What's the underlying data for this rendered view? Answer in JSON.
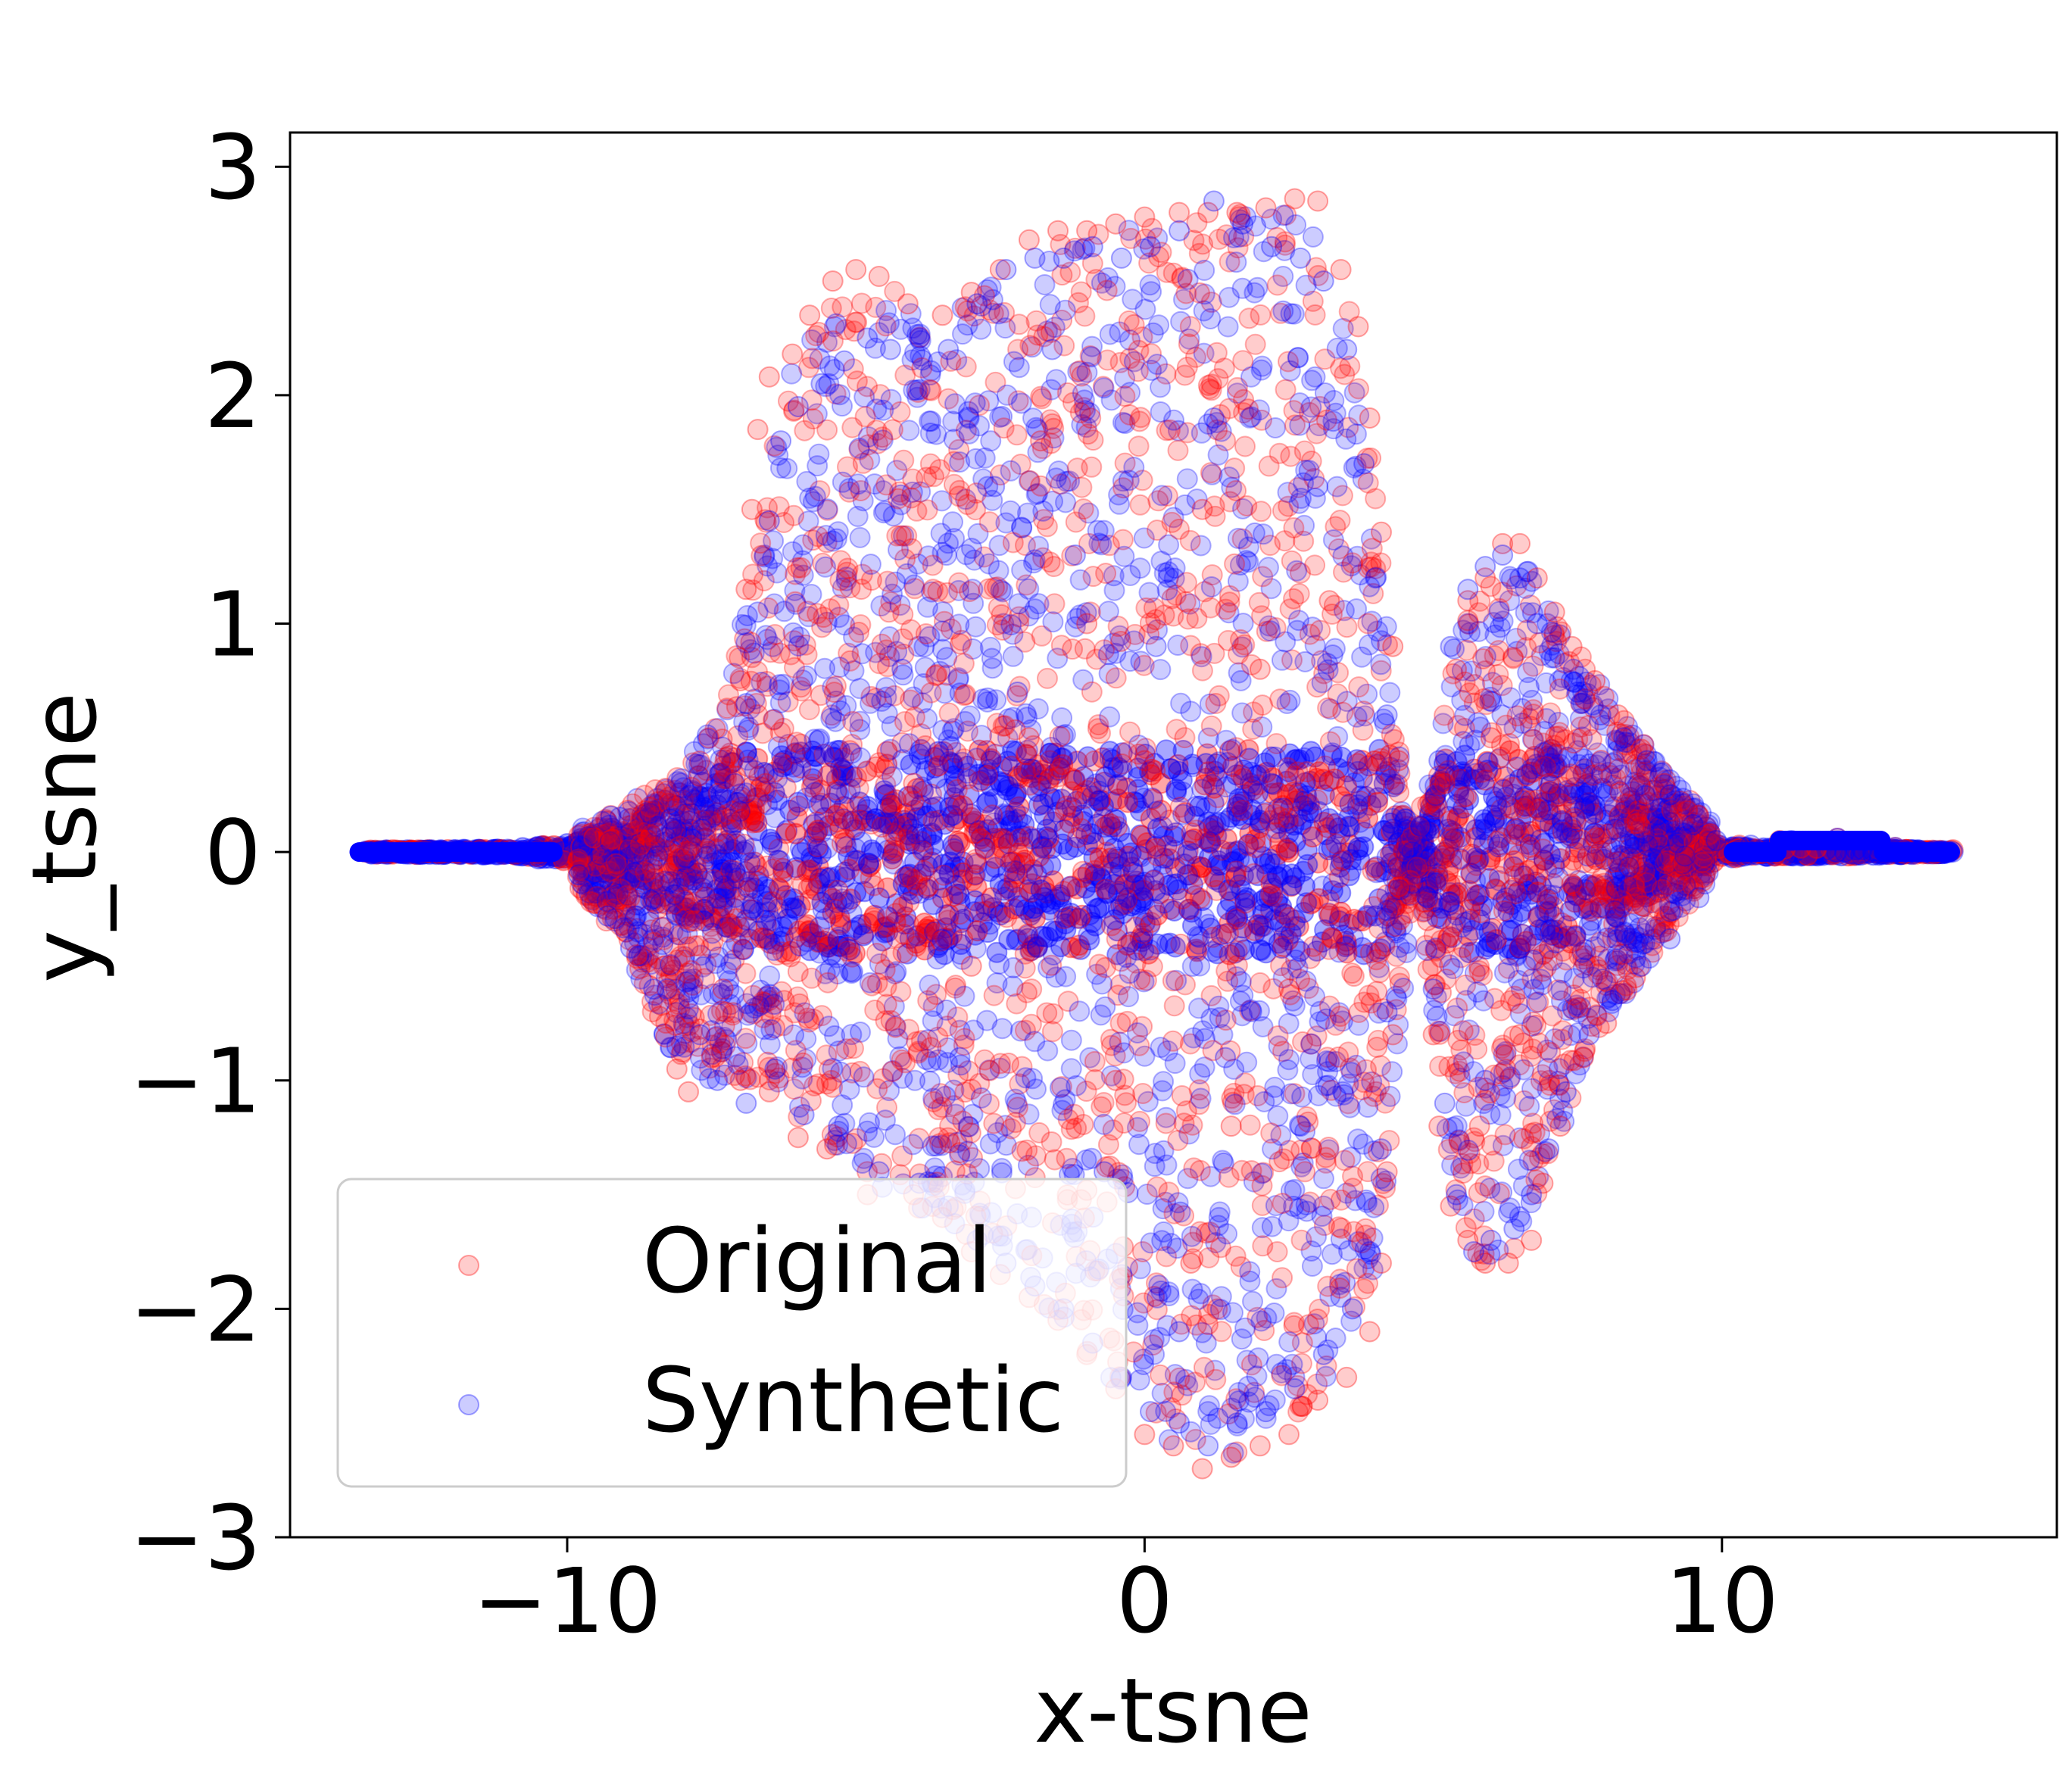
{
  "chart_data": {
    "type": "scatter",
    "xlabel": "x-tsne",
    "ylabel": "y_tsne",
    "xlim": [
      -14.8,
      15.8
    ],
    "ylim": [
      -3.0,
      3.15
    ],
    "xticks": [
      -10,
      0,
      10
    ],
    "xtick_labels": [
      "−10",
      "0",
      "10"
    ],
    "yticks": [
      -3,
      -2,
      -1,
      0,
      1,
      2,
      3
    ],
    "ytick_labels": [
      "−3",
      "−2",
      "−1",
      "0",
      "1",
      "2",
      "3"
    ],
    "grid": false,
    "legend_position": "lower-left",
    "series": [
      {
        "name": "Original",
        "color": "#ff0000",
        "alpha": 0.2,
        "points": [
          [
            -13.5,
            0.0
          ],
          [
            -12.5,
            0.0
          ],
          [
            -11.5,
            0.01
          ],
          [
            -10.5,
            -0.02
          ],
          [
            -9.8,
            -0.08
          ],
          [
            -9.2,
            -0.25
          ],
          [
            -8.8,
            -0.45
          ],
          [
            -8.4,
            -0.72
          ],
          [
            -8.1,
            -0.95
          ],
          [
            -7.9,
            -1.05
          ],
          [
            -7.5,
            -0.9
          ],
          [
            -7.3,
            -0.6
          ],
          [
            -7.2,
            0.42
          ],
          [
            -7.0,
            0.75
          ],
          [
            -6.9,
            1.15
          ],
          [
            -6.8,
            1.5
          ],
          [
            -6.7,
            1.85
          ],
          [
            -6.5,
            2.08
          ],
          [
            -6.1,
            2.18
          ],
          [
            -5.8,
            2.35
          ],
          [
            -5.4,
            2.5
          ],
          [
            -5.0,
            2.55
          ],
          [
            -4.6,
            2.52
          ],
          [
            -4.1,
            2.4
          ],
          [
            -3.5,
            2.35
          ],
          [
            -3.0,
            2.45
          ],
          [
            -2.5,
            2.55
          ],
          [
            -2.0,
            2.68
          ],
          [
            -1.5,
            2.72
          ],
          [
            -1.0,
            2.72
          ],
          [
            -0.5,
            2.75
          ],
          [
            0.0,
            2.78
          ],
          [
            0.6,
            2.8
          ],
          [
            1.1,
            2.8
          ],
          [
            1.6,
            2.8
          ],
          [
            2.1,
            2.82
          ],
          [
            2.6,
            2.86
          ],
          [
            3.0,
            2.85
          ],
          [
            3.4,
            2.55
          ],
          [
            3.7,
            2.3
          ],
          [
            3.9,
            1.9
          ],
          [
            4.1,
            1.4
          ],
          [
            4.3,
            0.9
          ],
          [
            4.4,
            0.4
          ],
          [
            4.3,
            -0.8
          ],
          [
            4.2,
            -1.4
          ],
          [
            4.1,
            -1.8
          ],
          [
            3.9,
            -2.1
          ],
          [
            3.5,
            -2.3
          ],
          [
            3.0,
            -2.4
          ],
          [
            2.5,
            -2.55
          ],
          [
            2.0,
            -2.6
          ],
          [
            1.5,
            -2.65
          ],
          [
            1.0,
            -2.7
          ],
          [
            0.5,
            -2.6
          ],
          [
            0.0,
            -2.55
          ],
          [
            -0.5,
            -2.35
          ],
          [
            -1.0,
            -2.2
          ],
          [
            -1.5,
            -2.05
          ],
          [
            -2.0,
            -1.95
          ],
          [
            -2.5,
            -1.85
          ],
          [
            -3.0,
            -1.75
          ],
          [
            -3.5,
            -1.6
          ],
          [
            -4.0,
            -1.5
          ],
          [
            -4.8,
            -1.5
          ],
          [
            -5.5,
            -1.3
          ],
          [
            -6.0,
            -1.25
          ],
          [
            -6.5,
            -1.05
          ],
          [
            -7.0,
            -1.0
          ],
          [
            -2.0,
            0.5
          ],
          [
            -1.0,
            1.0
          ],
          [
            0.0,
            0.4
          ],
          [
            1.0,
            1.5
          ],
          [
            2.0,
            0.8
          ],
          [
            -3.0,
            -0.5
          ],
          [
            1.5,
            -1.2
          ],
          [
            -0.5,
            -1.0
          ],
          [
            2.5,
            -0.6
          ],
          [
            -4.0,
            0.3
          ],
          [
            3.2,
            1.1
          ],
          [
            -1.8,
            1.8
          ],
          [
            0.8,
            -1.8
          ],
          [
            5.2,
            0.3
          ],
          [
            5.4,
            0.8
          ],
          [
            5.6,
            1.1
          ],
          [
            5.9,
            1.2
          ],
          [
            6.2,
            1.35
          ],
          [
            6.5,
            1.35
          ],
          [
            6.8,
            1.2
          ],
          [
            7.1,
            1.05
          ],
          [
            7.4,
            0.9
          ],
          [
            7.8,
            0.75
          ],
          [
            8.2,
            0.6
          ],
          [
            8.6,
            0.45
          ],
          [
            9.0,
            0.3
          ],
          [
            9.4,
            0.18
          ],
          [
            9.8,
            0.08
          ],
          [
            10.3,
            0.03
          ],
          [
            11.0,
            0.05
          ],
          [
            12.0,
            0.06
          ],
          [
            13.0,
            0.02
          ],
          [
            14.0,
            0.01
          ],
          [
            9.5,
            -0.15
          ],
          [
            9.0,
            -0.35
          ],
          [
            8.5,
            -0.55
          ],
          [
            8.0,
            -0.75
          ],
          [
            7.6,
            -0.9
          ],
          [
            7.2,
            -1.2
          ],
          [
            6.9,
            -1.45
          ],
          [
            6.7,
            -1.7
          ],
          [
            6.3,
            -1.8
          ],
          [
            5.9,
            -1.8
          ],
          [
            5.6,
            -1.7
          ],
          [
            5.3,
            -1.55
          ],
          [
            5.1,
            -1.2
          ],
          [
            5.0,
            -0.8
          ],
          [
            4.9,
            -0.3
          ],
          [
            6.0,
            0.5
          ],
          [
            6.5,
            -0.8
          ],
          [
            5.8,
            -1.2
          ],
          [
            7.0,
            0.3
          ]
        ]
      },
      {
        "name": "Synthetic",
        "color": "#0000ff",
        "alpha": 0.2,
        "points": [
          [
            -13.5,
            0.0
          ],
          [
            -12.5,
            0.0
          ],
          [
            -11.5,
            0.0
          ],
          [
            -10.5,
            -0.03
          ],
          [
            -9.8,
            -0.1
          ],
          [
            -9.3,
            -0.28
          ],
          [
            -8.9,
            -0.42
          ],
          [
            -8.5,
            -0.6
          ],
          [
            -8.1,
            -0.85
          ],
          [
            -7.7,
            -0.8
          ],
          [
            -7.4,
            -1.0
          ],
          [
            -7.1,
            0.3
          ],
          [
            -6.9,
            0.65
          ],
          [
            -6.7,
            1.05
          ],
          [
            -6.5,
            1.45
          ],
          [
            -6.3,
            1.8
          ],
          [
            -6.0,
            1.95
          ],
          [
            -5.6,
            2.05
          ],
          [
            -5.2,
            2.15
          ],
          [
            -4.8,
            2.25
          ],
          [
            -4.4,
            2.2
          ],
          [
            -3.9,
            2.25
          ],
          [
            -3.4,
            2.2
          ],
          [
            -2.9,
            2.4
          ],
          [
            -2.4,
            2.55
          ],
          [
            -1.9,
            2.6
          ],
          [
            -1.4,
            2.6
          ],
          [
            -0.9,
            2.65
          ],
          [
            -0.4,
            2.6
          ],
          [
            0.1,
            2.65
          ],
          [
            0.6,
            2.72
          ],
          [
            1.2,
            2.85
          ],
          [
            1.7,
            2.75
          ],
          [
            2.2,
            2.65
          ],
          [
            2.7,
            2.6
          ],
          [
            3.1,
            2.5
          ],
          [
            3.5,
            2.2
          ],
          [
            3.8,
            1.7
          ],
          [
            4.0,
            1.2
          ],
          [
            4.2,
            0.6
          ],
          [
            4.3,
            0.1
          ],
          [
            4.2,
            -0.7
          ],
          [
            4.1,
            -1.3
          ],
          [
            3.9,
            -1.75
          ],
          [
            3.6,
            -2.0
          ],
          [
            3.1,
            -2.2
          ],
          [
            2.6,
            -2.35
          ],
          [
            2.1,
            -2.45
          ],
          [
            1.6,
            -2.5
          ],
          [
            1.1,
            -2.6
          ],
          [
            0.6,
            -2.5
          ],
          [
            0.1,
            -2.45
          ],
          [
            -0.4,
            -2.3
          ],
          [
            -0.9,
            -2.15
          ],
          [
            -1.4,
            -2.0
          ],
          [
            -1.9,
            -1.9
          ],
          [
            -2.4,
            -1.8
          ],
          [
            -2.9,
            -1.7
          ],
          [
            -3.4,
            -1.55
          ],
          [
            -3.9,
            -1.45
          ],
          [
            -4.6,
            -1.4
          ],
          [
            -5.3,
            -1.2
          ],
          [
            -5.9,
            -1.15
          ],
          [
            -6.4,
            -0.95
          ],
          [
            -6.9,
            -1.1
          ],
          [
            -2.2,
            0.7
          ],
          [
            -1.2,
            1.3
          ],
          [
            0.2,
            0.9
          ],
          [
            1.2,
            1.9
          ],
          [
            2.2,
            0.3
          ],
          [
            -3.2,
            -0.9
          ],
          [
            1.4,
            -0.9
          ],
          [
            -0.7,
            -1.4
          ],
          [
            2.7,
            -1.2
          ],
          [
            -4.2,
            0.8
          ],
          [
            3.0,
            1.6
          ],
          [
            -1.6,
            2.2
          ],
          [
            0.6,
            -2.1
          ],
          [
            -2.6,
            1.6
          ],
          [
            0.9,
            0.2
          ],
          [
            5.1,
            0.4
          ],
          [
            5.3,
            0.9
          ],
          [
            5.6,
            1.15
          ],
          [
            5.9,
            1.25
          ],
          [
            6.2,
            1.3
          ],
          [
            6.5,
            1.2
          ],
          [
            6.8,
            1.0
          ],
          [
            7.1,
            0.85
          ],
          [
            7.5,
            0.7
          ],
          [
            7.9,
            0.6
          ],
          [
            8.3,
            0.5
          ],
          [
            8.7,
            0.4
          ],
          [
            9.1,
            0.25
          ],
          [
            9.5,
            0.12
          ],
          [
            9.9,
            0.05
          ],
          [
            10.5,
            0.03
          ],
          [
            11.2,
            0.05
          ],
          [
            12.0,
            0.06
          ],
          [
            13.0,
            0.02
          ],
          [
            14.0,
            0.0
          ],
          [
            9.6,
            -0.2
          ],
          [
            9.1,
            -0.38
          ],
          [
            8.6,
            -0.5
          ],
          [
            8.1,
            -0.65
          ],
          [
            7.7,
            -0.8
          ],
          [
            7.3,
            -1.05
          ],
          [
            7.0,
            -1.3
          ],
          [
            6.7,
            -1.5
          ],
          [
            6.4,
            -1.65
          ],
          [
            6.0,
            -1.7
          ],
          [
            5.7,
            -1.75
          ],
          [
            5.4,
            -1.5
          ],
          [
            5.2,
            -1.1
          ],
          [
            5.0,
            -0.6
          ],
          [
            4.9,
            -0.2
          ],
          [
            6.1,
            0.2
          ],
          [
            6.6,
            -0.5
          ],
          [
            5.9,
            -1.0
          ],
          [
            7.2,
            0.0
          ]
        ]
      }
    ]
  }
}
